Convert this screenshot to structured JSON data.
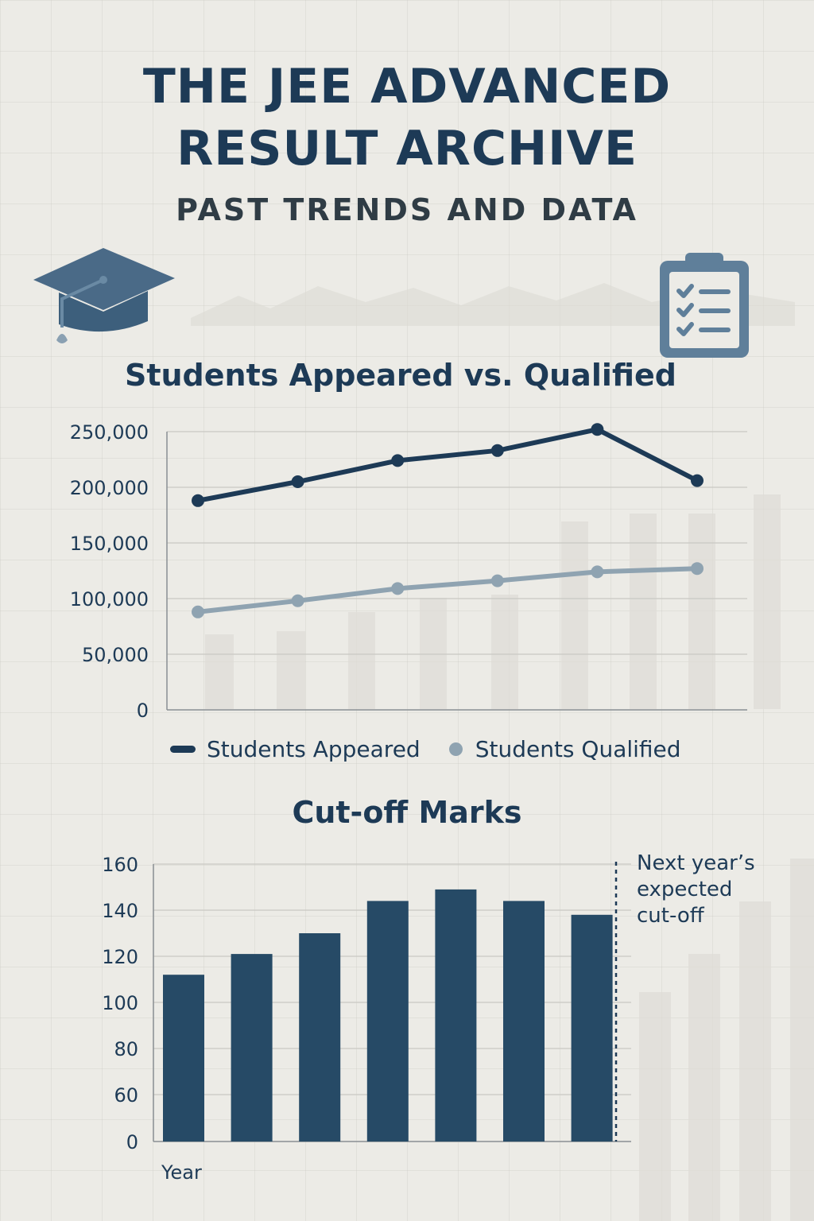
{
  "header": {
    "title_line1": "THE JEE ADVANCED",
    "title_line2": "RESULT ARCHIVE",
    "subtitle": "PAST TRENDS AND DATA"
  },
  "icons": {
    "left": "graduation-cap-icon",
    "right": "clipboard-checklist-icon"
  },
  "colors": {
    "primary": "#1d3a56",
    "secondary": "#8fa3b1",
    "bar": "#264a66",
    "background": "#ecebe6"
  },
  "chart_data": [
    {
      "type": "line",
      "title": "Students Appeared vs. Qualified",
      "xlabel": "",
      "ylabel": "",
      "ylim": [
        0,
        250000
      ],
      "yticks": [
        "0",
        "50,000",
        "100,000",
        "150,000",
        "200,000",
        "250,000"
      ],
      "ytick_values": [
        0,
        50000,
        100000,
        150000,
        200000,
        250000
      ],
      "grid": true,
      "legend_position": "bottom",
      "series": [
        {
          "name": "Students Appeared",
          "values": [
            188000,
            205000,
            224000,
            233000,
            252000,
            206000
          ]
        },
        {
          "name": "Students Qualified",
          "values": [
            88000,
            98000,
            109000,
            116000,
            124000,
            127000
          ]
        }
      ]
    },
    {
      "type": "bar",
      "title": "Cut-off Marks",
      "xlabel": "Year",
      "ylabel": "",
      "ylim": [
        0,
        160
      ],
      "yticks": [
        "0",
        "60",
        "80",
        "100",
        "120",
        "140",
        "160"
      ],
      "ytick_values": [
        0,
        60,
        80,
        100,
        120,
        140,
        160
      ],
      "grid": true,
      "values": [
        112,
        121,
        130,
        144,
        149,
        144,
        138
      ],
      "annotation": [
        "Next year’s",
        "expected",
        "cut-off"
      ]
    }
  ]
}
